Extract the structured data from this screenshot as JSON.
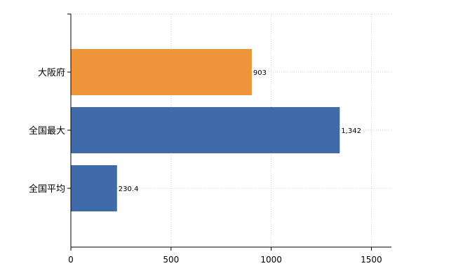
{
  "chart_data": {
    "type": "bar",
    "orientation": "horizontal",
    "categories": [
      "大阪府",
      "全国最大",
      "全国平均"
    ],
    "values": [
      903,
      1342,
      230.4
    ],
    "data_labels": [
      "903",
      "1,342",
      "230.4"
    ],
    "colors": [
      "#f0963a",
      "#3f6ca8",
      "#3f6ca8"
    ],
    "xlim": [
      0,
      1600
    ],
    "x_ticks": [
      0,
      500,
      1000,
      1500
    ],
    "x_tick_labels": [
      "0",
      "500",
      "1000",
      "1500"
    ],
    "grid": true,
    "legend": "none"
  }
}
